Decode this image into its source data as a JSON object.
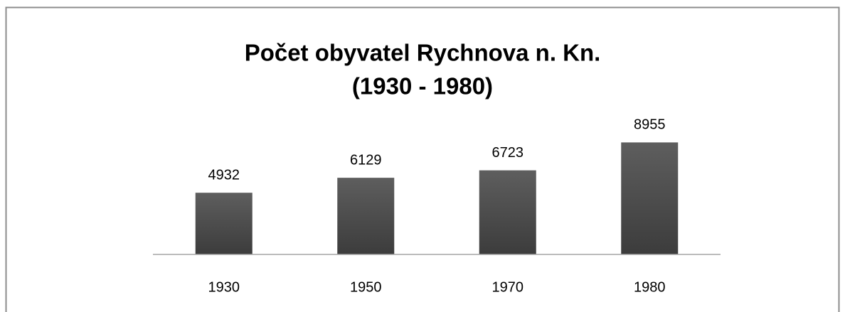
{
  "chart_data": {
    "type": "bar",
    "title": [
      "Počet obyvatel Rychnova n. Kn.",
      "(1930 - 1980)"
    ],
    "categories": [
      "1930",
      "1950",
      "1970",
      "1980"
    ],
    "values": [
      4932,
      6129,
      6723,
      8955
    ],
    "color": "#555555",
    "ylim": [
      0,
      10000
    ]
  }
}
